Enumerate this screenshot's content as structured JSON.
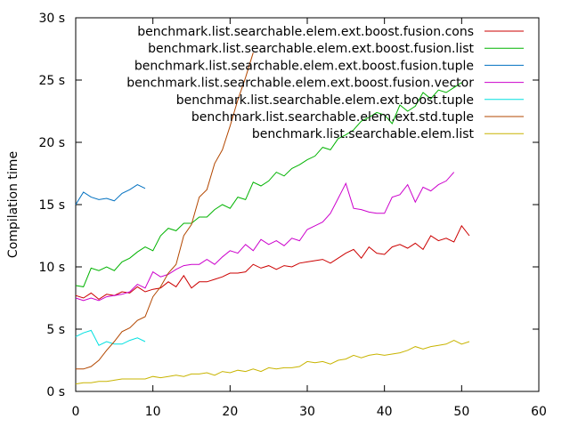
{
  "chart_data": {
    "type": "line",
    "title": "",
    "xlabel": "",
    "ylabel": "Compilation time",
    "xlim": [
      0,
      60
    ],
    "ylim": [
      0,
      30
    ],
    "x_ticks": [
      0,
      10,
      20,
      30,
      40,
      50,
      60
    ],
    "y_ticks": [
      {
        "value": 0,
        "label": "0 s"
      },
      {
        "value": 5,
        "label": "5 s"
      },
      {
        "value": 10,
        "label": "10 s"
      },
      {
        "value": 15,
        "label": "15 s"
      },
      {
        "value": 20,
        "label": "20 s"
      },
      {
        "value": 25,
        "label": "25 s"
      },
      {
        "value": 30,
        "label": "30 s"
      }
    ],
    "grid": false,
    "legend_position": "top-right",
    "series": [
      {
        "name": "benchmark.list.searchable.elem.ext.boost.fusion.cons",
        "color": "#cc0000",
        "x": [
          0,
          1,
          2,
          3,
          4,
          5,
          6,
          7,
          8,
          9,
          10,
          11,
          12,
          13,
          14,
          15,
          16,
          17,
          18,
          19,
          20,
          21,
          22,
          23,
          24,
          25,
          26,
          27,
          28,
          29,
          30,
          31,
          32,
          33,
          34,
          35,
          36,
          37,
          38,
          39,
          40,
          41,
          42,
          43,
          44,
          45,
          46,
          47,
          48,
          49,
          50,
          51
        ],
        "y": [
          7.7,
          7.5,
          7.9,
          7.4,
          7.8,
          7.7,
          8.0,
          7.9,
          8.4,
          8.0,
          8.2,
          8.3,
          8.8,
          8.4,
          9.3,
          8.3,
          8.8,
          8.8,
          9.0,
          9.2,
          9.5,
          9.5,
          9.6,
          10.2,
          9.9,
          10.1,
          9.8,
          10.1,
          10.0,
          10.3,
          10.4,
          10.5,
          10.6,
          10.3,
          10.7,
          11.1,
          11.4,
          10.7,
          11.6,
          11.1,
          11.0,
          11.6,
          11.8,
          11.5,
          11.9,
          11.4,
          12.5,
          12.1,
          12.3,
          12.0,
          13.3,
          12.5
        ]
      },
      {
        "name": "benchmark.list.searchable.elem.ext.boost.fusion.list",
        "color": "#00b300",
        "x": [
          0,
          1,
          2,
          3,
          4,
          5,
          6,
          7,
          8,
          9,
          10,
          11,
          12,
          13,
          14,
          15,
          16,
          17,
          18,
          19,
          20,
          21,
          22,
          23,
          24,
          25,
          26,
          27,
          28,
          29,
          30,
          31,
          32,
          33,
          34,
          35,
          36,
          37,
          38,
          39,
          40,
          41,
          42,
          43,
          44,
          45,
          46,
          47,
          48,
          49,
          50
        ],
        "y": [
          8.5,
          8.4,
          9.9,
          9.7,
          10.0,
          9.7,
          10.4,
          10.7,
          11.2,
          11.6,
          11.3,
          12.5,
          13.1,
          12.9,
          13.5,
          13.5,
          14.0,
          14.0,
          14.6,
          15.0,
          14.7,
          15.6,
          15.4,
          16.8,
          16.5,
          16.9,
          17.6,
          17.3,
          17.9,
          18.2,
          18.6,
          18.9,
          19.6,
          19.4,
          20.3,
          20.6,
          21.0,
          21.7,
          22.0,
          22.4,
          22.2,
          21.5,
          23.0,
          22.5,
          22.9,
          24.0,
          23.5,
          24.2,
          24.0,
          24.4,
          24.8
        ]
      },
      {
        "name": "benchmark.list.searchable.elem.ext.boost.fusion.tuple",
        "color": "#0070c0",
        "x": [
          0,
          1,
          2,
          3,
          4,
          5,
          6,
          7,
          8,
          9
        ],
        "y": [
          15.0,
          16.0,
          15.6,
          15.4,
          15.5,
          15.3,
          15.9,
          16.2,
          16.6,
          16.3
        ]
      },
      {
        "name": "benchmark.list.searchable.elem.ext.boost.fusion.vector",
        "color": "#cc00cc",
        "x": [
          0,
          1,
          2,
          3,
          4,
          5,
          6,
          7,
          8,
          9,
          10,
          11,
          12,
          13,
          14,
          15,
          16,
          17,
          18,
          19,
          20,
          21,
          22,
          23,
          24,
          25,
          26,
          27,
          28,
          29,
          30,
          31,
          32,
          33,
          34,
          35,
          36,
          37,
          38,
          39,
          40,
          41,
          42,
          43,
          44,
          45,
          46,
          47,
          48,
          49
        ],
        "y": [
          7.5,
          7.3,
          7.5,
          7.3,
          7.6,
          7.7,
          7.8,
          8.0,
          8.6,
          8.3,
          9.6,
          9.2,
          9.4,
          9.8,
          10.1,
          10.2,
          10.2,
          10.6,
          10.2,
          10.8,
          11.3,
          11.1,
          11.8,
          11.3,
          12.2,
          11.8,
          12.1,
          11.7,
          12.3,
          12.1,
          13.0,
          13.3,
          13.6,
          14.3,
          15.5,
          16.7,
          14.7,
          14.6,
          14.4,
          14.3,
          14.3,
          15.6,
          15.8,
          16.6,
          15.2,
          16.4,
          16.1,
          16.6,
          16.9,
          17.6
        ]
      },
      {
        "name": "benchmark.list.searchable.elem.ext.boost.tuple",
        "color": "#00e0e0",
        "x": [
          0,
          1,
          2,
          3,
          4,
          5,
          6,
          7,
          8,
          9
        ],
        "y": [
          4.4,
          4.7,
          4.9,
          3.7,
          4.0,
          3.8,
          3.8,
          4.1,
          4.3,
          4.0
        ]
      },
      {
        "name": "benchmark.list.searchable.elem.ext.std.tuple",
        "color": "#b34700",
        "x": [
          0,
          1,
          2,
          3,
          4,
          5,
          6,
          7,
          8,
          9,
          10,
          11,
          12,
          13,
          14,
          15,
          16,
          17,
          18,
          19,
          20,
          21,
          22,
          23
        ],
        "y": [
          1.8,
          1.8,
          2.0,
          2.5,
          3.3,
          4.0,
          4.8,
          5.1,
          5.7,
          6.0,
          7.6,
          8.4,
          9.5,
          10.2,
          12.5,
          13.4,
          15.6,
          16.2,
          18.3,
          19.4,
          21.3,
          23.4,
          25.2,
          27.2
        ]
      },
      {
        "name": "benchmark.list.searchable.elem.list",
        "color": "#c8b400",
        "x": [
          0,
          1,
          2,
          3,
          4,
          5,
          6,
          7,
          8,
          9,
          10,
          11,
          12,
          13,
          14,
          15,
          16,
          17,
          18,
          19,
          20,
          21,
          22,
          23,
          24,
          25,
          26,
          27,
          28,
          29,
          30,
          31,
          32,
          33,
          34,
          35,
          36,
          37,
          38,
          39,
          40,
          41,
          42,
          43,
          44,
          45,
          46,
          47,
          48,
          49,
          50,
          51
        ],
        "y": [
          0.6,
          0.7,
          0.7,
          0.8,
          0.8,
          0.9,
          1.0,
          1.0,
          1.0,
          1.0,
          1.2,
          1.1,
          1.2,
          1.3,
          1.2,
          1.4,
          1.4,
          1.5,
          1.3,
          1.6,
          1.5,
          1.7,
          1.6,
          1.8,
          1.6,
          1.9,
          1.8,
          1.9,
          1.9,
          2.0,
          2.4,
          2.3,
          2.4,
          2.2,
          2.5,
          2.6,
          2.9,
          2.7,
          2.9,
          3.0,
          2.9,
          3.0,
          3.1,
          3.3,
          3.6,
          3.4,
          3.6,
          3.7,
          3.8,
          4.1,
          3.8,
          4.0
        ]
      }
    ]
  }
}
